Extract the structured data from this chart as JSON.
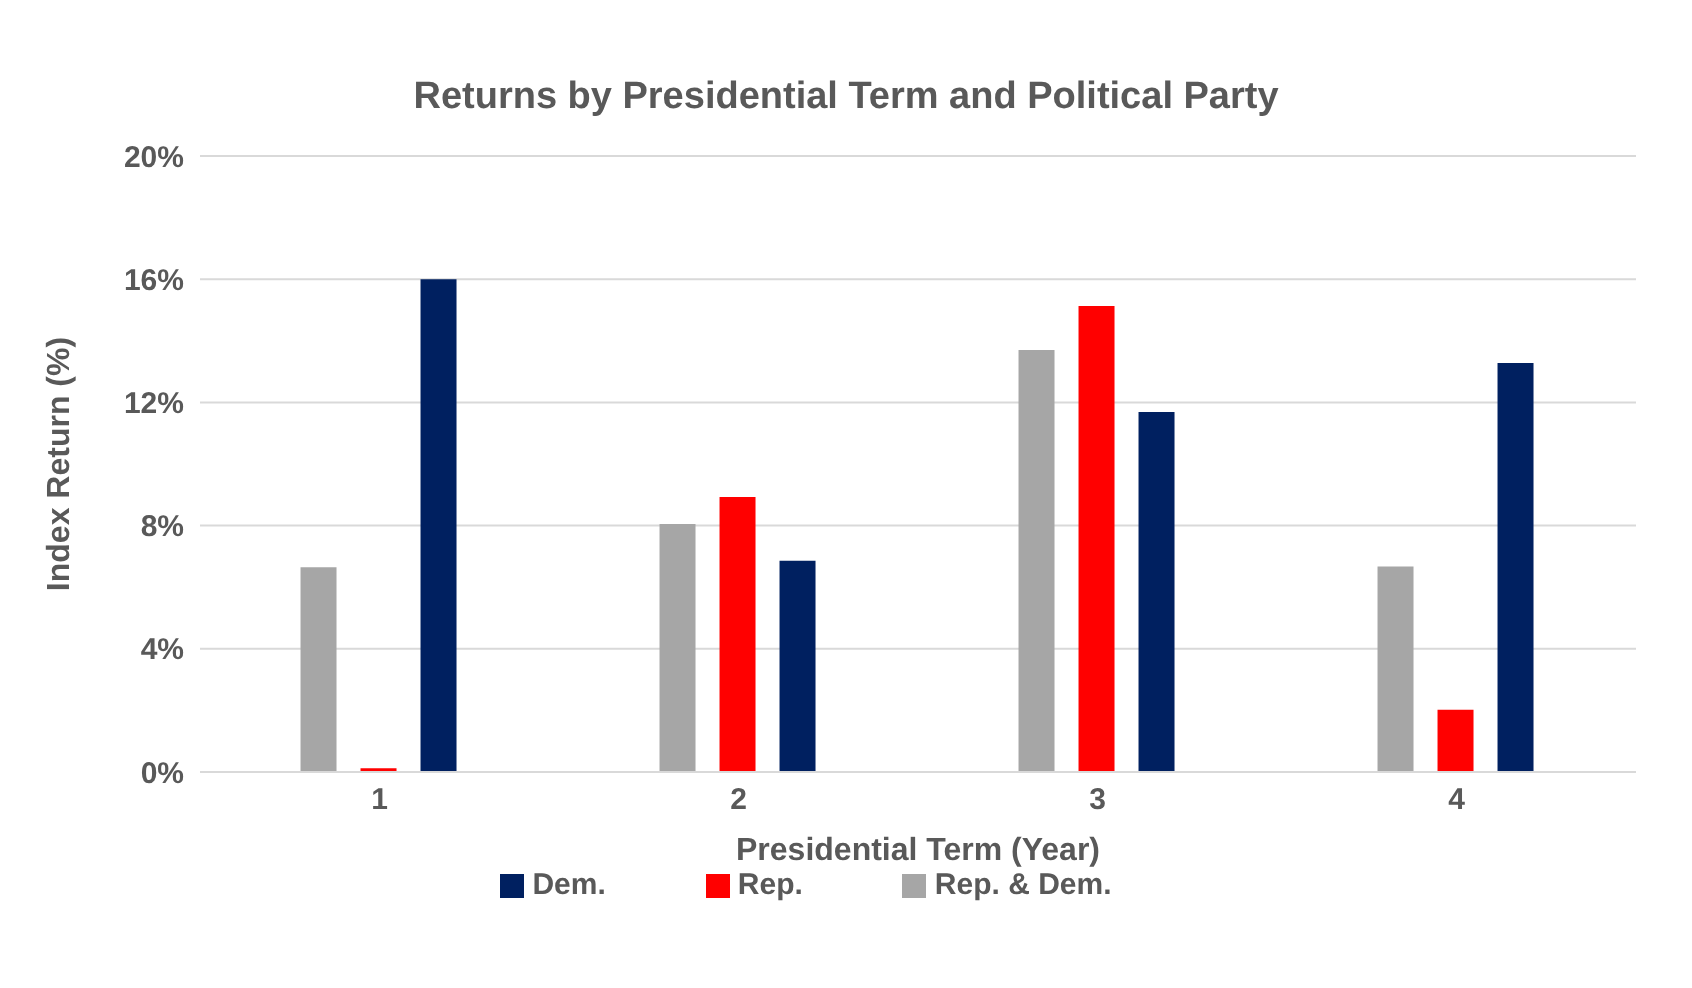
{
  "chart_data": {
    "type": "bar",
    "title": "Returns by Presidential Term and Political Party",
    "xlabel": "Presidential Term (Year)",
    "ylabel": "Index Return (%)",
    "categories": [
      "1",
      "2",
      "3",
      "4"
    ],
    "series": [
      {
        "name": "Rep. & Dem.",
        "color": "#a6a6a6",
        "values": [
          6.65,
          8.05,
          13.7,
          6.67
        ]
      },
      {
        "name": "Rep.",
        "color": "#ff0000",
        "values": [
          0.12,
          8.93,
          15.13,
          2.02
        ]
      },
      {
        "name": "Dem.",
        "color": "#002060",
        "values": [
          16.0,
          6.86,
          11.69,
          13.28
        ]
      }
    ],
    "ylim": [
      0,
      20
    ],
    "yticks": [
      {
        "value": 0,
        "label": "0%"
      },
      {
        "value": 4,
        "label": "4%"
      },
      {
        "value": 8,
        "label": "8%"
      },
      {
        "value": 12,
        "label": "12%"
      },
      {
        "value": 16,
        "label": "16%"
      },
      {
        "value": 20,
        "label": "20%"
      }
    ],
    "grid": "y",
    "legend": "bottom"
  }
}
